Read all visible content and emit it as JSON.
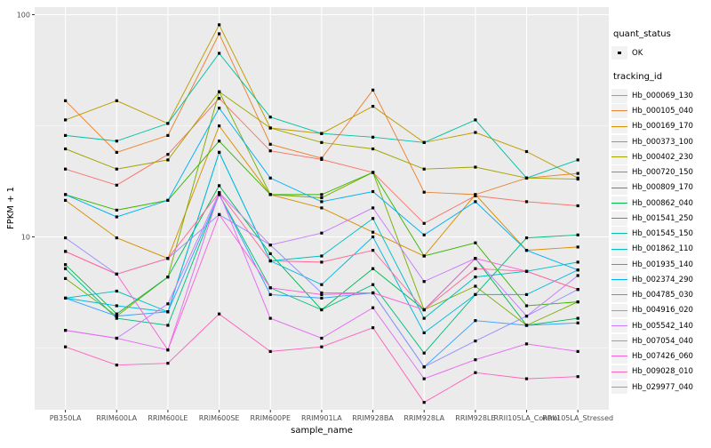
{
  "axes": {
    "y_title": "FPKM + 1",
    "x_title": "sample_name",
    "y_tick_labels": [
      "100",
      "10"
    ]
  },
  "legend": {
    "quant_title": "quant_status",
    "quant_items": [
      {
        "label": "OK"
      }
    ],
    "tracking_title": "tracking_id"
  },
  "chart_data": {
    "type": "line",
    "title": "",
    "xlabel": "sample_name",
    "ylabel": "FPKM + 1",
    "y_scale": "log10",
    "ylim": [
      1.6,
      110
    ],
    "y_major_ticks": [
      100,
      10
    ],
    "y_minor_gridlines": [
      31.623,
      3.1623
    ],
    "grid": "on",
    "legend_position": "right",
    "point_shape": "small-black-square (quant_status OK)",
    "categories": [
      "PB350LA",
      "RRIM600LA",
      "RRIM600LE",
      "RRIM600SE",
      "RRIM600PE",
      "RRIM901LA",
      "RRIM928BA",
      "RRIM928LA",
      "RRIM928LE",
      "RRII105LA_Control",
      "RRII105LA_Stressed"
    ],
    "series": [
      {
        "name": "Hb_000069_130",
        "color": "#F8766D",
        "values": [
          20.2,
          17.1,
          23.5,
          42,
          24.4,
          22.3,
          19.5,
          11.5,
          15.3,
          14.4,
          13.8
        ]
      },
      {
        "name": "Hb_000105_040",
        "color": "#EA8331",
        "values": [
          41,
          24,
          28.6,
          82,
          26.1,
          22.6,
          45.8,
          15.9,
          15.5,
          18.4,
          19.3
        ]
      },
      {
        "name": "Hb_000169_170",
        "color": "#D89000",
        "values": [
          14.6,
          9.9,
          8.0,
          31.6,
          15.5,
          13.5,
          10.5,
          8.2,
          15.5,
          8.7,
          9.0
        ]
      },
      {
        "name": "Hb_000373_100",
        "color": "#C09B00",
        "values": [
          33.6,
          41,
          32.4,
          90,
          30.9,
          29.2,
          38.7,
          26.6,
          29.5,
          24.2,
          18.4
        ]
      },
      {
        "name": "Hb_000402_230",
        "color": "#A3A500",
        "values": [
          24.9,
          20.2,
          22.2,
          45,
          30.9,
          26.6,
          24.9,
          20.2,
          20.6,
          18.4,
          18.2
        ]
      },
      {
        "name": "Hb_000720_150",
        "color": "#7CAE00",
        "values": [
          6.5,
          4.4,
          6.6,
          45,
          15.5,
          15.0,
          19.5,
          4.7,
          6.0,
          4.0,
          5.1
        ]
      },
      {
        "name": "Hb_000809_170",
        "color": "#39B600",
        "values": [
          15.5,
          13.2,
          14.6,
          27,
          15.5,
          15.5,
          19.5,
          8.2,
          9.4,
          4.9,
          5.1
        ]
      },
      {
        "name": "Hb_000862_040",
        "color": "#00BB4E",
        "values": [
          7.5,
          4.5,
          6.6,
          17,
          8.4,
          4.7,
          7.2,
          4.7,
          8.0,
          4.0,
          4.3
        ]
      },
      {
        "name": "Hb_001541_250",
        "color": "#00BF7D",
        "values": [
          7.2,
          4.3,
          4.0,
          15.5,
          5.9,
          4.7,
          6.1,
          3.0,
          5.5,
          9.9,
          10.2
        ]
      },
      {
        "name": "Hb_001545_150",
        "color": "#00C1A3",
        "values": [
          28.6,
          27,
          32.4,
          67,
          34.6,
          29.2,
          28.1,
          26.6,
          33.6,
          18.4,
          22.2
        ]
      },
      {
        "name": "Hb_001862_110",
        "color": "#00BFC4",
        "values": [
          5.3,
          5.7,
          4.6,
          24,
          7.8,
          8.2,
          12.1,
          4.3,
          6.6,
          7.0,
          7.7
        ]
      },
      {
        "name": "Hb_001935_140",
        "color": "#00BAE0",
        "values": [
          5.3,
          4.9,
          4.6,
          24,
          7.8,
          6.1,
          10.0,
          3.7,
          5.5,
          5.5,
          7.1
        ]
      },
      {
        "name": "Hb_002374_290",
        "color": "#00B0F6",
        "values": [
          15.5,
          12.3,
          14.6,
          38,
          18.4,
          14.4,
          16.0,
          10.2,
          14.4,
          8.7,
          7.1
        ]
      },
      {
        "name": "Hb_004785_030",
        "color": "#35A2FF",
        "values": [
          5.3,
          4.4,
          4.6,
          15.5,
          5.5,
          5.3,
          5.6,
          2.6,
          4.2,
          4.0,
          4.1
        ]
      },
      {
        "name": "Hb_004916_020",
        "color": "#9590FF",
        "values": [
          9.9,
          6.8,
          8.0,
          12.6,
          9.2,
          5.6,
          5.6,
          2.6,
          3.4,
          4.4,
          5.8
        ]
      },
      {
        "name": "Hb_005542_140",
        "color": "#C77CFF",
        "values": [
          3.8,
          3.5,
          5.0,
          15.8,
          9.2,
          10.4,
          13.5,
          6.3,
          8.0,
          4.4,
          6.7
        ]
      },
      {
        "name": "Hb_007054_040",
        "color": "#E76BF3",
        "values": [
          3.8,
          3.5,
          3.1,
          15.8,
          4.3,
          3.5,
          4.8,
          2.3,
          2.8,
          3.3,
          3.05
        ]
      },
      {
        "name": "Hb_007426_060",
        "color": "#FA62DB",
        "values": [
          8.6,
          6.8,
          3.1,
          12.6,
          5.9,
          5.5,
          5.6,
          4.7,
          8.0,
          7.0,
          5.8
        ]
      },
      {
        "name": "Hb_009028_010",
        "color": "#FF62BC",
        "values": [
          3.2,
          2.65,
          2.7,
          4.5,
          3.05,
          3.2,
          3.9,
          1.8,
          2.45,
          2.3,
          2.35
        ]
      },
      {
        "name": "Hb_029977_040",
        "color": "#FF6A98",
        "values": [
          8.6,
          6.8,
          8.0,
          15.8,
          7.8,
          7.7,
          8.7,
          4.7,
          7.2,
          7.0,
          5.8
        ]
      }
    ]
  },
  "colors": {
    "panel_bg": "#EBEBEB",
    "grid": "#FFFFFF",
    "axis_text": "#4D4D4D",
    "tick_mark": "#333333",
    "point": "#000000",
    "legend_key_bg": "#F2F2F2"
  }
}
